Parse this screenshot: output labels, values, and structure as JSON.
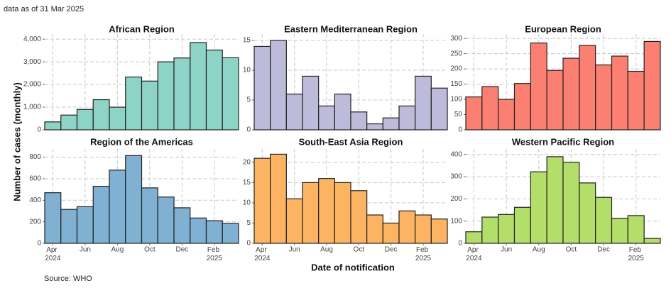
{
  "note": "data as of 31 Mar 2025",
  "ylabel": "Number of cases (monthly)",
  "xlabel": "Date of notification",
  "source": "Source: WHO",
  "chart_data": [
    {
      "type": "bar",
      "title": "African Region",
      "color": "#8dd3c7",
      "values": [
        350,
        650,
        900,
        1330,
        1000,
        2330,
        2150,
        3000,
        3170,
        3850,
        3520,
        3180
      ],
      "ylim": [
        0,
        4100
      ],
      "yticks": [
        0,
        {
          "value": 1000,
          "label": "1,000"
        },
        {
          "value": 2000,
          "label": "2,000"
        },
        {
          "value": 3000,
          "label": "3,000"
        },
        {
          "value": 4000,
          "label": "4,000"
        }
      ],
      "grid": true
    },
    {
      "type": "bar",
      "title": "Eastern Mediterranean Region",
      "color": "#bebada",
      "values": [
        14,
        15,
        6,
        9,
        4,
        6,
        3,
        1,
        2,
        4,
        9,
        7
      ],
      "ylim": [
        0,
        15.6
      ],
      "yticks": [
        0,
        5,
        10,
        15
      ],
      "grid": true
    },
    {
      "type": "bar",
      "title": "European Region",
      "color": "#fb8072",
      "values": [
        108,
        142,
        100,
        152,
        285,
        195,
        235,
        277,
        213,
        242,
        192,
        290
      ],
      "ylim": [
        0,
        305
      ],
      "yticks": [
        0,
        50,
        100,
        150,
        200,
        250,
        300
      ],
      "grid": true
    },
    {
      "type": "bar",
      "title": "Region of the Americas",
      "color": "#80b1d3",
      "categories": [
        "Apr 2024",
        null,
        "Jun",
        null,
        "Aug",
        null,
        "Oct",
        null,
        "Dec",
        null,
        "Feb 2025",
        null
      ],
      "values": [
        470,
        315,
        340,
        530,
        680,
        815,
        515,
        430,
        330,
        235,
        210,
        185
      ],
      "ylim": [
        0,
        850
      ],
      "yticks": [
        0,
        200,
        400,
        600,
        800
      ],
      "grid": true
    },
    {
      "type": "bar",
      "title": "South-East Asia Region",
      "color": "#fdb462",
      "categories": [
        "Apr 2024",
        null,
        "Jun",
        null,
        "Aug",
        null,
        "Oct",
        null,
        "Dec",
        null,
        "Feb 2025",
        null
      ],
      "values": [
        21,
        22,
        11,
        15,
        16,
        15,
        13,
        7,
        5,
        8,
        7,
        6
      ],
      "ylim": [
        0,
        22.6
      ],
      "yticks": [
        0,
        5,
        10,
        15,
        20
      ],
      "grid": true
    },
    {
      "type": "bar",
      "title": "Western Pacific Region",
      "color": "#b3de69",
      "categories": [
        "Apr 2024",
        null,
        "Jun",
        null,
        "Aug",
        null,
        "Oct",
        null,
        "Dec",
        null,
        "Feb 2025",
        null
      ],
      "values": [
        52,
        118,
        130,
        162,
        322,
        390,
        365,
        272,
        207,
        113,
        125,
        22
      ],
      "ylim": [
        0,
        412
      ],
      "yticks": [
        0,
        100,
        200,
        300,
        400
      ],
      "grid": true
    }
  ]
}
